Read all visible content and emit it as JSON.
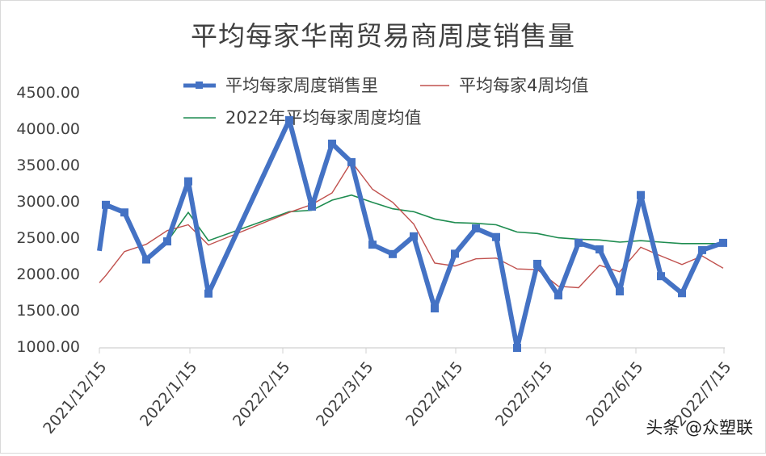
{
  "chart_data": {
    "type": "line",
    "title": "平均每家华南贸易商周度销售量",
    "xlabel": "",
    "ylabel": "",
    "ylim": [
      1000,
      4500
    ],
    "yticks": [
      "4500.00",
      "4000.00",
      "3500.00",
      "3000.00",
      "2500.00",
      "2000.00",
      "1500.00",
      "1000.00"
    ],
    "xticks": [
      "2021/12/15",
      "2022/1/15",
      "2022/2/15",
      "2022/3/15",
      "2022/4/15",
      "2022/5/15",
      "2022/6/15",
      "2022/7/15"
    ],
    "grid": false,
    "legend_position": "top",
    "x": [
      "2021/12/15",
      "2021/12/17",
      "2021/12/24",
      "2021/12/31",
      "2022/1/7",
      "2022/1/14",
      "2022/1/21",
      "2022/2/18",
      "2022/2/25",
      "2022/3/4",
      "2022/3/11",
      "2022/3/18",
      "2022/3/25",
      "2022/4/1",
      "2022/4/8",
      "2022/4/15",
      "2022/4/22",
      "2022/4/29",
      "2022/5/6",
      "2022/5/13",
      "2022/5/20",
      "2022/5/27",
      "2022/6/3",
      "2022/6/10",
      "2022/6/17",
      "2022/6/24",
      "2022/7/1",
      "2022/7/8",
      "2022/7/15"
    ],
    "series": [
      {
        "name": "平均每家周度销售里",
        "color": "#4472c4",
        "values": [
          2340,
          2975,
          2870,
          2220,
          2470,
          3300,
          1750,
          4145,
          2950,
          3820,
          3565,
          2425,
          2295,
          2540,
          1545,
          2300,
          2650,
          2530,
          1000,
          2160,
          1725,
          2450,
          2360,
          1780,
          3110,
          1990,
          1755,
          2350,
          2450
        ]
      },
      {
        "name": "平均每家4周均值",
        "color": "#c0504d",
        "values": [
          1900,
          2000,
          2330,
          2430,
          2620,
          2700,
          2420,
          2870,
          2980,
          3140,
          3570,
          3190,
          3010,
          2710,
          2170,
          2130,
          2230,
          2240,
          2090,
          2080,
          1850,
          1830,
          2140,
          2050,
          2390,
          2270,
          2150,
          2270,
          2100
        ]
      },
      {
        "name": "2022年平均每家周度均值",
        "color": "#1e8c50",
        "values": [
          null,
          null,
          null,
          null,
          2470,
          2870,
          2480,
          2880,
          2900,
          3040,
          3110,
          3010,
          2920,
          2880,
          2780,
          2730,
          2720,
          2700,
          2600,
          2580,
          2520,
          2500,
          2490,
          2460,
          2480,
          2460,
          2440,
          2440,
          2440
        ]
      }
    ]
  },
  "header": {
    "title": "平均每家华南贸易商周度销售量"
  },
  "legend": [
    {
      "label": "平均每家周度销售里",
      "color": "#4472c4"
    },
    {
      "label": "平均每家4周均值",
      "color": "#c0504d"
    },
    {
      "label": "2022年平均每家周度均值",
      "color": "#1e8c50"
    }
  ],
  "watermark": "头条 @众塑联"
}
